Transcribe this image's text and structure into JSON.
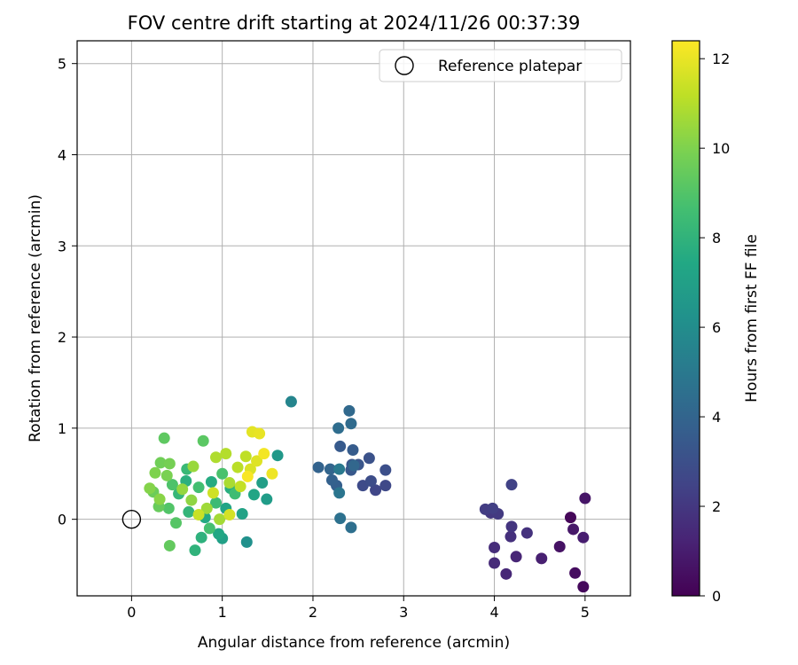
{
  "chart_data": {
    "type": "scatter",
    "title": "FOV centre drift starting at 2024/11/26 00:37:39",
    "xlabel": "Angular distance from reference (arcmin)",
    "ylabel": "Rotation from reference (arcmin)",
    "xlim": [
      -0.6,
      5.5
    ],
    "ylim": [
      -0.84,
      5.25
    ],
    "xticks": [
      0,
      1,
      2,
      3,
      4,
      5
    ],
    "yticks": [
      0,
      1,
      2,
      3,
      4,
      5
    ],
    "grid": true,
    "legend": {
      "placement": "upper right",
      "entries": [
        "Reference platepar"
      ]
    },
    "reference": {
      "x": 0,
      "y": 0,
      "label": "Reference platepar"
    },
    "colorbar": {
      "label": "Hours from first FF file",
      "colormap": "viridis",
      "range": [
        0,
        12.4
      ],
      "ticks": [
        0,
        2,
        4,
        6,
        8,
        10,
        12
      ]
    },
    "points": [
      {
        "x": 4.84,
        "y": 0.02,
        "c": 0.2
      },
      {
        "x": 4.98,
        "y": -0.74,
        "c": 0.3
      },
      {
        "x": 4.89,
        "y": -0.59,
        "c": 0.4
      },
      {
        "x": 4.72,
        "y": -0.3,
        "c": 0.6
      },
      {
        "x": 5.0,
        "y": 0.23,
        "c": 0.7
      },
      {
        "x": 4.87,
        "y": -0.11,
        "c": 0.8
      },
      {
        "x": 4.98,
        "y": -0.2,
        "c": 1.0
      },
      {
        "x": 4.52,
        "y": -0.43,
        "c": 1.1
      },
      {
        "x": 4.24,
        "y": -0.41,
        "c": 1.3
      },
      {
        "x": 4.13,
        "y": -0.6,
        "c": 1.4
      },
      {
        "x": 4.0,
        "y": -0.48,
        "c": 1.5
      },
      {
        "x": 4.0,
        "y": -0.31,
        "c": 1.6
      },
      {
        "x": 4.18,
        "y": -0.19,
        "c": 1.7
      },
      {
        "x": 4.36,
        "y": -0.15,
        "c": 1.8
      },
      {
        "x": 4.19,
        "y": -0.08,
        "c": 1.9
      },
      {
        "x": 3.96,
        "y": 0.07,
        "c": 2.0
      },
      {
        "x": 4.04,
        "y": 0.06,
        "c": 2.1
      },
      {
        "x": 3.9,
        "y": 0.11,
        "c": 2.2
      },
      {
        "x": 3.98,
        "y": 0.12,
        "c": 2.3
      },
      {
        "x": 4.19,
        "y": 0.38,
        "c": 2.4
      },
      {
        "x": 2.69,
        "y": 0.32,
        "c": 2.6
      },
      {
        "x": 2.8,
        "y": 0.37,
        "c": 2.7
      },
      {
        "x": 2.55,
        "y": 0.37,
        "c": 2.8
      },
      {
        "x": 2.64,
        "y": 0.42,
        "c": 2.9
      },
      {
        "x": 2.8,
        "y": 0.54,
        "c": 3.0
      },
      {
        "x": 2.62,
        "y": 0.67,
        "c": 3.1
      },
      {
        "x": 2.43,
        "y": 0.6,
        "c": 3.2
      },
      {
        "x": 2.5,
        "y": 0.6,
        "c": 3.3
      },
      {
        "x": 2.42,
        "y": 0.54,
        "c": 3.4
      },
      {
        "x": 2.3,
        "y": 0.8,
        "c": 3.5
      },
      {
        "x": 2.44,
        "y": 0.76,
        "c": 3.6
      },
      {
        "x": 2.26,
        "y": 0.37,
        "c": 3.7
      },
      {
        "x": 2.21,
        "y": 0.43,
        "c": 3.8
      },
      {
        "x": 2.06,
        "y": 0.57,
        "c": 3.9
      },
      {
        "x": 2.19,
        "y": 0.55,
        "c": 4.0
      },
      {
        "x": 2.45,
        "y": 0.59,
        "c": 4.1
      },
      {
        "x": 2.4,
        "y": 1.19,
        "c": 4.2
      },
      {
        "x": 2.42,
        "y": 1.05,
        "c": 4.3
      },
      {
        "x": 2.28,
        "y": 1.0,
        "c": 4.4
      },
      {
        "x": 2.42,
        "y": -0.09,
        "c": 4.5
      },
      {
        "x": 2.3,
        "y": 0.01,
        "c": 4.6
      },
      {
        "x": 2.29,
        "y": 0.29,
        "c": 4.8
      },
      {
        "x": 2.29,
        "y": 0.55,
        "c": 5.0
      },
      {
        "x": 1.76,
        "y": 1.29,
        "c": 5.6
      },
      {
        "x": 1.27,
        "y": -0.25,
        "c": 6.2
      },
      {
        "x": 1.61,
        "y": 0.7,
        "c": 6.6
      },
      {
        "x": 1.49,
        "y": 0.22,
        "c": 6.8
      },
      {
        "x": 1.44,
        "y": 0.4,
        "c": 6.9
      },
      {
        "x": 1.0,
        "y": -0.21,
        "c": 7.0
      },
      {
        "x": 1.22,
        "y": 0.06,
        "c": 7.1
      },
      {
        "x": 1.04,
        "y": 0.12,
        "c": 7.2
      },
      {
        "x": 1.35,
        "y": 0.27,
        "c": 7.3
      },
      {
        "x": 0.96,
        "y": -0.16,
        "c": 7.4
      },
      {
        "x": 0.81,
        "y": 0.02,
        "c": 7.5
      },
      {
        "x": 0.88,
        "y": 0.41,
        "c": 7.6
      },
      {
        "x": 1.09,
        "y": 0.34,
        "c": 7.7
      },
      {
        "x": 0.6,
        "y": 0.42,
        "c": 7.8
      },
      {
        "x": 0.77,
        "y": -0.2,
        "c": 7.9
      },
      {
        "x": 0.7,
        "y": -0.34,
        "c": 8.0
      },
      {
        "x": 0.63,
        "y": 0.08,
        "c": 8.1
      },
      {
        "x": 0.52,
        "y": 0.28,
        "c": 8.2
      },
      {
        "x": 0.61,
        "y": 0.55,
        "c": 8.3
      },
      {
        "x": 0.93,
        "y": 0.18,
        "c": 8.4
      },
      {
        "x": 1.14,
        "y": 0.28,
        "c": 8.5
      },
      {
        "x": 0.74,
        "y": 0.35,
        "c": 8.6
      },
      {
        "x": 0.86,
        "y": -0.1,
        "c": 8.7
      },
      {
        "x": 1.0,
        "y": 0.5,
        "c": 8.8
      },
      {
        "x": 0.45,
        "y": 0.38,
        "c": 8.9
      },
      {
        "x": 0.41,
        "y": 0.12,
        "c": 9.0
      },
      {
        "x": 0.49,
        "y": -0.04,
        "c": 9.1
      },
      {
        "x": 0.79,
        "y": 0.86,
        "c": 9.2
      },
      {
        "x": 0.36,
        "y": 0.89,
        "c": 9.3
      },
      {
        "x": 0.42,
        "y": -0.29,
        "c": 9.4
      },
      {
        "x": 0.3,
        "y": 0.14,
        "c": 9.5
      },
      {
        "x": 0.24,
        "y": 0.3,
        "c": 9.6
      },
      {
        "x": 0.32,
        "y": 0.62,
        "c": 9.7
      },
      {
        "x": 0.42,
        "y": 0.61,
        "c": 9.8
      },
      {
        "x": 0.39,
        "y": 0.48,
        "c": 9.9
      },
      {
        "x": 0.26,
        "y": 0.51,
        "c": 10.0
      },
      {
        "x": 0.2,
        "y": 0.34,
        "c": 10.1
      },
      {
        "x": 0.31,
        "y": 0.22,
        "c": 10.2
      },
      {
        "x": 0.66,
        "y": 0.21,
        "c": 10.3
      },
      {
        "x": 0.56,
        "y": 0.33,
        "c": 10.4
      },
      {
        "x": 0.68,
        "y": 0.58,
        "c": 10.5
      },
      {
        "x": 0.83,
        "y": 0.12,
        "c": 10.6
      },
      {
        "x": 0.97,
        "y": 0.0,
        "c": 10.7
      },
      {
        "x": 1.08,
        "y": 0.4,
        "c": 10.8
      },
      {
        "x": 0.93,
        "y": 0.68,
        "c": 10.9
      },
      {
        "x": 1.04,
        "y": 0.72,
        "c": 11.0
      },
      {
        "x": 1.17,
        "y": 0.57,
        "c": 11.1
      },
      {
        "x": 1.26,
        "y": 0.69,
        "c": 11.2
      },
      {
        "x": 1.2,
        "y": 0.36,
        "c": 11.3
      },
      {
        "x": 0.74,
        "y": 0.05,
        "c": 11.4
      },
      {
        "x": 0.9,
        "y": 0.29,
        "c": 11.5
      },
      {
        "x": 1.08,
        "y": 0.05,
        "c": 11.6
      },
      {
        "x": 1.31,
        "y": 0.55,
        "c": 11.7
      },
      {
        "x": 1.38,
        "y": 0.64,
        "c": 11.8
      },
      {
        "x": 1.33,
        "y": 0.96,
        "c": 11.9
      },
      {
        "x": 1.41,
        "y": 0.94,
        "c": 12.0
      },
      {
        "x": 1.55,
        "y": 0.5,
        "c": 12.1
      },
      {
        "x": 1.46,
        "y": 0.72,
        "c": 12.2
      },
      {
        "x": 1.28,
        "y": 0.47,
        "c": 12.3
      }
    ]
  }
}
